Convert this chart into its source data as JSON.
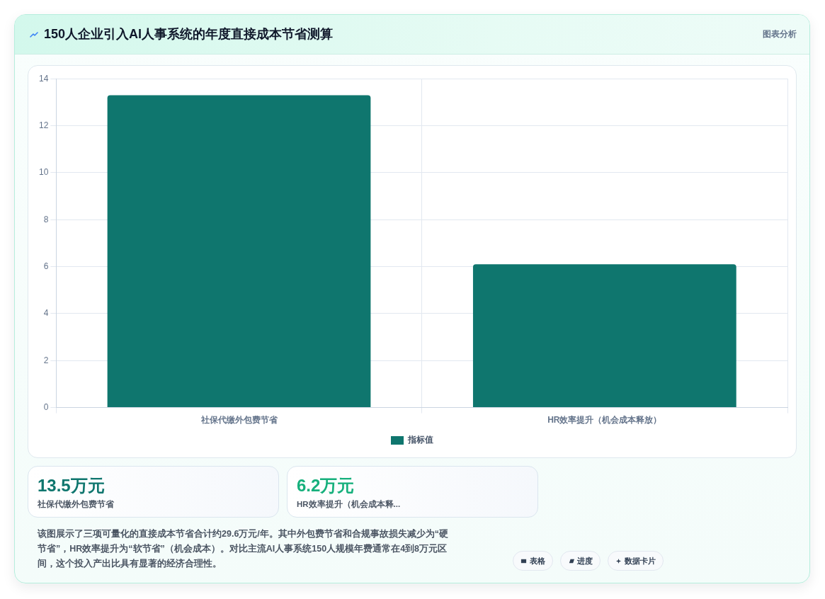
{
  "chart_data": {
    "type": "bar",
    "title": "150人企业引入AI人事系统的年度直接成本节省测算",
    "categories": [
      "社保代缴外包费节省",
      "HR效率提升（机会成本释放）"
    ],
    "series": [
      {
        "name": "指标值",
        "color": "#0f766e",
        "values": [
          13.3,
          6.1
        ]
      }
    ],
    "ylim": [
      0,
      14
    ],
    "yticks": [
      0,
      2,
      4,
      6,
      8,
      10,
      12,
      14
    ],
    "grid": true,
    "legend": "bottom",
    "annotations": [
      "图表分析",
      "13.5万元",
      "社保代缴外包费节省",
      "6.2万元",
      "HR效率提升（机会成本释...",
      "该图展示了三项可量化的直接成本节省合计约29.6万元/年。其中外包费节省和合规事故损失减少为“硬节省”，HR效率提升为“软节省”（机会成本）。对比主流AI人事系统150人规模年费通常在4到8万元区间，这个投入产出比具有显著的经济合理性。",
      "表格",
      "进度",
      "数据卡片"
    ]
  }
}
